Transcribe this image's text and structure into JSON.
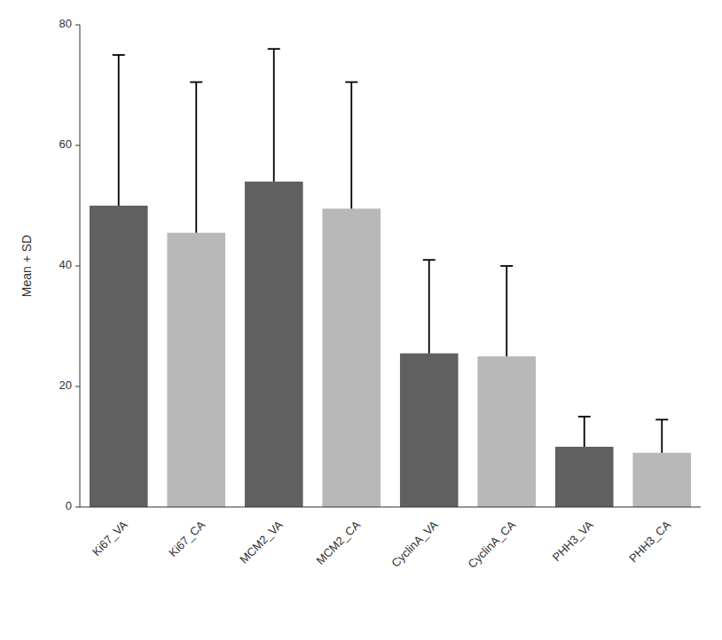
{
  "chart_data": {
    "type": "bar",
    "categories": [
      "Ki67_VA",
      "Ki67_CA",
      "MCM2_VA",
      "MCM2_CA",
      "CyclinA_VA",
      "CyclinA_CA",
      "PHH3_VA",
      "PHH3_CA"
    ],
    "values": [
      50.0,
      45.5,
      54.0,
      49.5,
      25.5,
      25.0,
      10.0,
      9.0
    ],
    "errors": [
      25.0,
      25.0,
      22.0,
      21.0,
      15.5,
      15.0,
      5.0,
      5.5
    ],
    "colors": [
      "#606060",
      "#b8b8b8",
      "#606060",
      "#b8b8b8",
      "#606060",
      "#b8b8b8",
      "#606060",
      "#b8b8b8"
    ],
    "ylabel": "Mean + SD",
    "ylim": [
      0,
      80
    ],
    "yticks": [
      0,
      20,
      40,
      60,
      80
    ],
    "grid": false
  }
}
